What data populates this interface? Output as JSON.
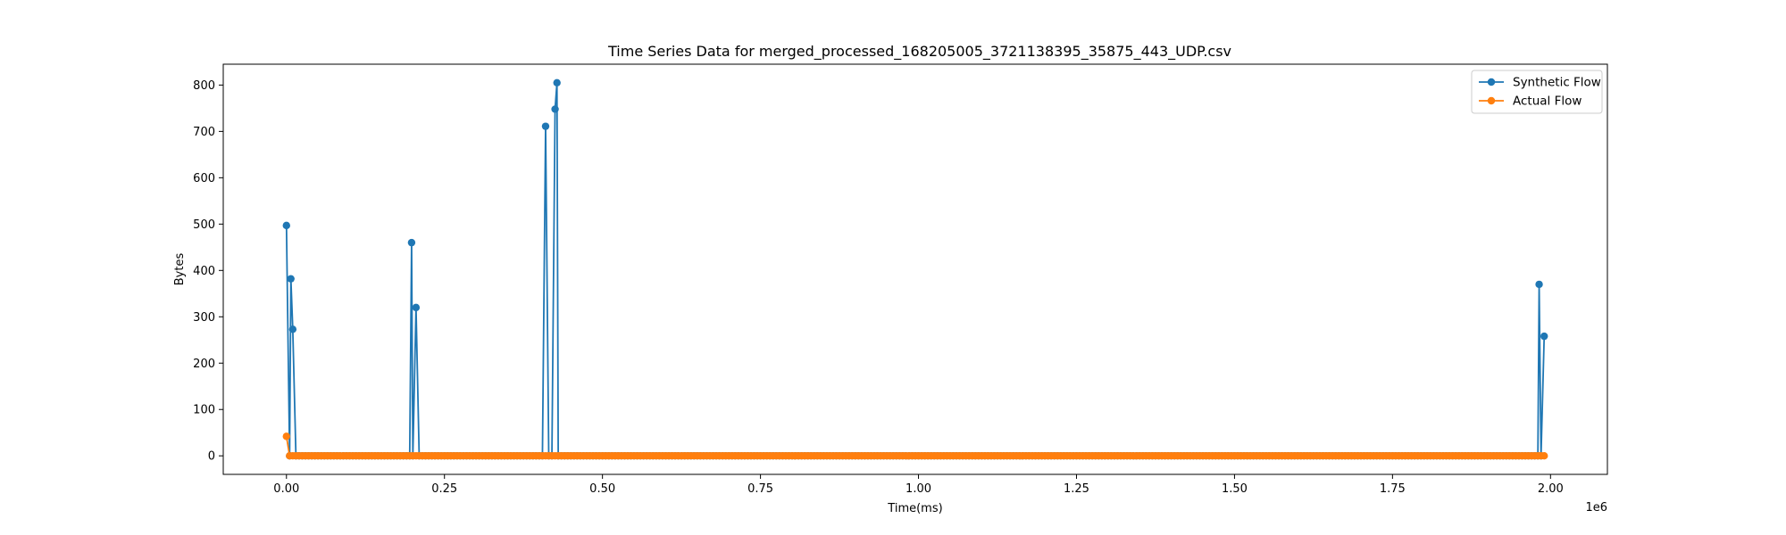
{
  "chart_data": {
    "type": "line",
    "title": "Time Series Data for merged_processed_168205005_3721138395_35875_443_UDP.csv",
    "xlabel": "Time(ms)",
    "ylabel": "Bytes",
    "x_offset_label": "1e6",
    "x_scale_factor": 1000000,
    "xlim": [
      -100000,
      2090000
    ],
    "ylim": [
      -40,
      845
    ],
    "x_ticks": [
      0,
      250000,
      500000,
      750000,
      1000000,
      1250000,
      1500000,
      1750000,
      2000000
    ],
    "x_tick_labels": [
      "0.00",
      "0.25",
      "0.50",
      "0.75",
      "1.00",
      "1.25",
      "1.50",
      "1.75",
      "2.00"
    ],
    "y_ticks": [
      0,
      100,
      200,
      300,
      400,
      500,
      600,
      700,
      800
    ],
    "y_tick_labels": [
      "0",
      "100",
      "200",
      "300",
      "400",
      "500",
      "600",
      "700",
      "800"
    ],
    "grid": false,
    "legend_position": "top-right",
    "series": [
      {
        "name": "Synthetic Flow",
        "color": "#1f77b4",
        "marker": "circle",
        "zero_baseline": {
          "x_start": 0,
          "x_end": 1990000,
          "step": 5000
        },
        "points": [
          [
            0,
            497
          ],
          [
            7000,
            382
          ],
          [
            10000,
            273
          ],
          [
            198000,
            460
          ],
          [
            205000,
            320
          ],
          [
            410000,
            711
          ],
          [
            425000,
            748
          ],
          [
            428000,
            805
          ],
          [
            1982000,
            370
          ],
          [
            1990000,
            258
          ]
        ]
      },
      {
        "name": "Actual Flow",
        "color": "#ff7f0e",
        "marker": "circle",
        "zero_baseline": {
          "x_start": 0,
          "x_end": 1990000,
          "step": 5000
        },
        "points": [
          [
            0,
            42
          ]
        ]
      }
    ]
  }
}
